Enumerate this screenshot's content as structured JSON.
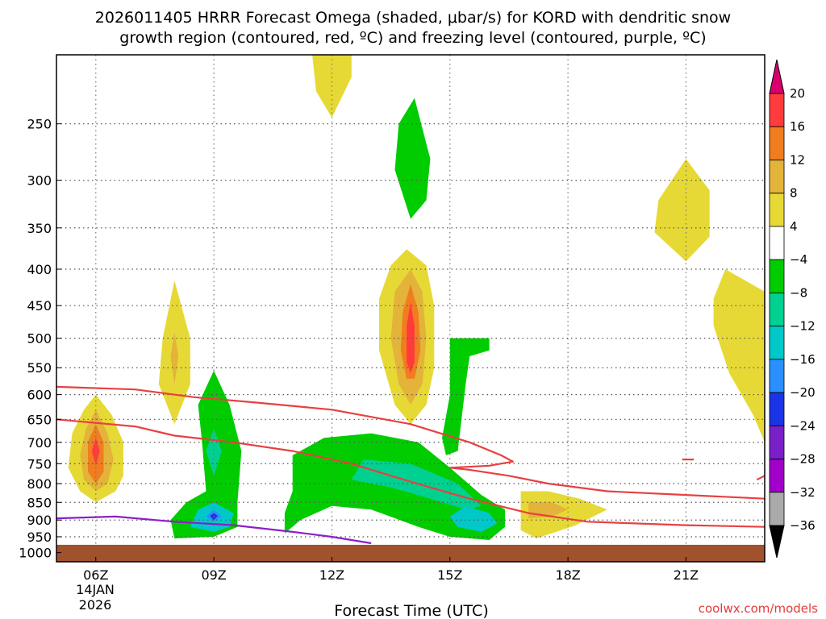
{
  "chart_data": {
    "type": "heatmap",
    "title_line1": "2026011405 HRRR Forecast Omega (shaded, μbar/s) for KORD with dendritic snow",
    "title_line2": "growth region (contoured, red, ºC) and freezing level (contoured, purple, ºC)",
    "xlabel": "Forecast Time (UTC)",
    "ylabel": "",
    "date_label_line1": "14JAN",
    "date_label_line2": "2026",
    "credit": "coolwx.com/models",
    "x_range_hours": [
      5,
      23
    ],
    "y_range_hpa": [
      200,
      1030
    ],
    "x_ticks": [
      {
        "hour": 6,
        "label": "06Z"
      },
      {
        "hour": 9,
        "label": "09Z"
      },
      {
        "hour": 12,
        "label": "12Z"
      },
      {
        "hour": 15,
        "label": "15Z"
      },
      {
        "hour": 18,
        "label": "18Z"
      },
      {
        "hour": 21,
        "label": "21Z"
      }
    ],
    "y_ticks": [
      {
        "p": 250,
        "label": "250"
      },
      {
        "p": 300,
        "label": "300"
      },
      {
        "p": 350,
        "label": "350"
      },
      {
        "p": 400,
        "label": "400"
      },
      {
        "p": 450,
        "label": "450"
      },
      {
        "p": 500,
        "label": "500"
      },
      {
        "p": 550,
        "label": "550"
      },
      {
        "p": 600,
        "label": "600"
      },
      {
        "p": 650,
        "label": "650"
      },
      {
        "p": 700,
        "label": "700"
      },
      {
        "p": 750,
        "label": "750"
      },
      {
        "p": 800,
        "label": "800"
      },
      {
        "p": 850,
        "label": "850"
      },
      {
        "p": 900,
        "label": "900"
      },
      {
        "p": 950,
        "label": "950"
      },
      {
        "p": 1000,
        "label": "1000"
      }
    ],
    "ground_pressure_hpa": 975,
    "colorbar": {
      "levels": [
        {
          "label": "20",
          "color": "#d9006c"
        },
        {
          "label": "16",
          "color": "#ff3b3b"
        },
        {
          "label": "12",
          "color": "#f07d20"
        },
        {
          "label": "8",
          "color": "#e3b33a"
        },
        {
          "label": "4",
          "color": "#e7d935"
        },
        {
          "label": "−4",
          "color": "#ffffff"
        },
        {
          "label": "−8",
          "color": "#00cc00"
        },
        {
          "label": "−12",
          "color": "#00d090"
        },
        {
          "label": "−16",
          "color": "#00c8c8"
        },
        {
          "label": "−20",
          "color": "#2a90ff"
        },
        {
          "label": "−24",
          "color": "#1b35e6"
        },
        {
          "label": "−28",
          "color": "#7a20c8"
        },
        {
          "label": "−32",
          "color": "#a000c8"
        },
        {
          "label": "−36",
          "color": "#aaaaaa"
        }
      ],
      "above_max_color": "#d9006c",
      "below_min_color": "#000000"
    },
    "shaded_features": [
      {
        "name": "upwards-lobe-06z-outer",
        "color": "#e7d935",
        "points": [
          [
            6.0,
            600
          ],
          [
            6.4,
            640
          ],
          [
            6.7,
            700
          ],
          [
            6.7,
            780
          ],
          [
            6.5,
            820
          ],
          [
            6.0,
            850
          ],
          [
            5.6,
            820
          ],
          [
            5.3,
            760
          ],
          [
            5.4,
            680
          ],
          [
            5.7,
            630
          ]
        ]
      },
      {
        "name": "upwards-lobe-06z-mid",
        "color": "#e3b33a",
        "points": [
          [
            6.0,
            630
          ],
          [
            6.3,
            680
          ],
          [
            6.45,
            740
          ],
          [
            6.3,
            800
          ],
          [
            6.0,
            820
          ],
          [
            5.7,
            790
          ],
          [
            5.6,
            730
          ],
          [
            5.75,
            670
          ]
        ]
      },
      {
        "name": "upwards-lobe-06z-inner",
        "color": "#f07d20",
        "points": [
          [
            6.0,
            660
          ],
          [
            6.2,
            700
          ],
          [
            6.2,
            770
          ],
          [
            6.0,
            800
          ],
          [
            5.8,
            770
          ],
          [
            5.8,
            700
          ]
        ]
      },
      {
        "name": "upwards-lobe-06z-core",
        "color": "#ff3b3b",
        "points": [
          [
            6.0,
            690
          ],
          [
            6.1,
            720
          ],
          [
            6.0,
            755
          ],
          [
            5.9,
            720
          ]
        ]
      },
      {
        "name": "upwards-lobe-08z",
        "color": "#e7d935",
        "points": [
          [
            8.0,
            415
          ],
          [
            8.4,
            500
          ],
          [
            8.4,
            580
          ],
          [
            8.0,
            660
          ],
          [
            7.6,
            580
          ],
          [
            7.7,
            500
          ]
        ]
      },
      {
        "name": "upwards-lobe-08z-inner",
        "color": "#e3b33a",
        "points": [
          [
            8.0,
            490
          ],
          [
            8.1,
            530
          ],
          [
            8.0,
            580
          ],
          [
            7.9,
            530
          ]
        ]
      },
      {
        "name": "upwards-lobe-12z-top",
        "color": "#e7d935",
        "points": [
          [
            11.5,
            200
          ],
          [
            12.5,
            200
          ],
          [
            12.5,
            215
          ],
          [
            12.0,
            245
          ],
          [
            11.6,
            225
          ]
        ]
      },
      {
        "name": "upwards-lobe-14z-outer",
        "color": "#e7d935",
        "points": [
          [
            13.9,
            375
          ],
          [
            14.4,
            395
          ],
          [
            14.6,
            450
          ],
          [
            14.6,
            550
          ],
          [
            14.4,
            620
          ],
          [
            14.0,
            660
          ],
          [
            13.6,
            620
          ],
          [
            13.2,
            520
          ],
          [
            13.2,
            440
          ],
          [
            13.5,
            395
          ]
        ]
      },
      {
        "name": "upwards-lobe-14z-mid",
        "color": "#e3b33a",
        "points": [
          [
            14.0,
            400
          ],
          [
            14.3,
            430
          ],
          [
            14.4,
            500
          ],
          [
            14.3,
            580
          ],
          [
            14.0,
            620
          ],
          [
            13.7,
            580
          ],
          [
            13.5,
            500
          ],
          [
            13.6,
            430
          ]
        ]
      },
      {
        "name": "upwards-lobe-14z-inner",
        "color": "#f07d20",
        "points": [
          [
            14.0,
            420
          ],
          [
            14.2,
            460
          ],
          [
            14.25,
            520
          ],
          [
            14.1,
            570
          ],
          [
            13.9,
            570
          ],
          [
            13.75,
            520
          ],
          [
            13.8,
            460
          ]
        ]
      },
      {
        "name": "upwards-lobe-14z-core",
        "color": "#ff3b3b",
        "points": [
          [
            14.0,
            445
          ],
          [
            14.1,
            480
          ],
          [
            14.1,
            540
          ],
          [
            14.0,
            560
          ],
          [
            13.9,
            540
          ],
          [
            13.9,
            480
          ]
        ]
      },
      {
        "name": "upwards-lobe-21z",
        "color": "#e7d935",
        "points": [
          [
            21.0,
            280
          ],
          [
            21.6,
            310
          ],
          [
            21.6,
            360
          ],
          [
            21.0,
            390
          ],
          [
            20.2,
            355
          ],
          [
            20.3,
            320
          ]
        ]
      },
      {
        "name": "upwards-lobe-23z",
        "color": "#e7d935",
        "points": [
          [
            23.0,
            430
          ],
          [
            23.0,
            700
          ],
          [
            22.7,
            640
          ],
          [
            22.1,
            560
          ],
          [
            21.7,
            480
          ],
          [
            21.7,
            440
          ],
          [
            22.0,
            400
          ]
        ]
      },
      {
        "name": "upwards-lobe-18z-outer",
        "color": "#e7d935",
        "points": [
          [
            16.8,
            820
          ],
          [
            17.5,
            820
          ],
          [
            18.3,
            840
          ],
          [
            19.0,
            870
          ],
          [
            18.2,
            915
          ],
          [
            17.2,
            955
          ],
          [
            16.8,
            930
          ]
        ]
      },
      {
        "name": "upwards-lobe-18z-inner",
        "color": "#e3b33a",
        "points": [
          [
            17.0,
            850
          ],
          [
            17.6,
            850
          ],
          [
            18.0,
            870
          ],
          [
            17.6,
            890
          ],
          [
            17.0,
            895
          ]
        ]
      },
      {
        "name": "downward-lobe-14z-top",
        "color": "#00cc00",
        "points": [
          [
            14.1,
            230
          ],
          [
            14.5,
            280
          ],
          [
            14.4,
            320
          ],
          [
            14.0,
            340
          ],
          [
            13.6,
            290
          ],
          [
            13.7,
            250
          ]
        ]
      },
      {
        "name": "downward-strip-15z",
        "color": "#00cc00",
        "points": [
          [
            15.0,
            485
          ],
          [
            15.0,
            500
          ],
          [
            16.0,
            500
          ],
          [
            16.0,
            520
          ],
          [
            15.5,
            530
          ],
          [
            15.4,
            580
          ],
          [
            15.2,
            720
          ],
          [
            14.9,
            730
          ],
          [
            14.8,
            690
          ],
          [
            15.0,
            600
          ]
        ]
      },
      {
        "name": "downward-region-09z",
        "color": "#00cc00",
        "points": [
          [
            9.0,
            555
          ],
          [
            9.4,
            620
          ],
          [
            9.7,
            720
          ],
          [
            9.6,
            850
          ],
          [
            9.6,
            920
          ],
          [
            9.0,
            950
          ],
          [
            8.0,
            955
          ],
          [
            7.9,
            900
          ],
          [
            8.3,
            850
          ],
          [
            8.8,
            820
          ],
          [
            8.7,
            700
          ],
          [
            8.6,
            620
          ]
        ]
      },
      {
        "name": "downward-region-09z-inner",
        "color": "#00d090",
        "points": [
          [
            9.0,
            670
          ],
          [
            9.2,
            720
          ],
          [
            9.0,
            780
          ],
          [
            8.8,
            720
          ]
        ]
      },
      {
        "name": "downward-region-09z-blue",
        "color": "#00c8c8",
        "points": [
          [
            9.0,
            850
          ],
          [
            9.5,
            880
          ],
          [
            9.4,
            920
          ],
          [
            9.0,
            935
          ],
          [
            8.4,
            920
          ],
          [
            8.6,
            870
          ]
        ]
      },
      {
        "name": "downward-region-09z-core",
        "color": "#2a90ff",
        "points": [
          [
            9.0,
            870
          ],
          [
            9.2,
            890
          ],
          [
            9.0,
            905
          ],
          [
            8.8,
            890
          ]
        ]
      },
      {
        "name": "downward-region-09z-peak",
        "color": "#1b35e6",
        "points": [
          [
            9.0,
            880
          ],
          [
            9.1,
            888
          ],
          [
            9.0,
            900
          ],
          [
            8.9,
            888
          ]
        ]
      },
      {
        "name": "downward-region-12z",
        "color": "#00cc00",
        "points": [
          [
            11.0,
            730
          ],
          [
            11.8,
            690
          ],
          [
            13.0,
            680
          ],
          [
            14.2,
            700
          ],
          [
            15.0,
            760
          ],
          [
            15.8,
            830
          ],
          [
            16.4,
            870
          ],
          [
            16.4,
            920
          ],
          [
            16.0,
            960
          ],
          [
            15.0,
            950
          ],
          [
            14.2,
            920
          ],
          [
            13.0,
            870
          ],
          [
            12.0,
            860
          ],
          [
            11.2,
            900
          ],
          [
            10.8,
            940
          ],
          [
            10.8,
            880
          ],
          [
            11.0,
            820
          ]
        ]
      },
      {
        "name": "downward-region-12z-inner",
        "color": "#00d090",
        "points": [
          [
            12.8,
            740
          ],
          [
            14.0,
            750
          ],
          [
            15.2,
            800
          ],
          [
            15.8,
            860
          ],
          [
            15.4,
            870
          ],
          [
            14.5,
            840
          ],
          [
            13.5,
            810
          ],
          [
            12.5,
            790
          ]
        ]
      },
      {
        "name": "downward-region-15z-core",
        "color": "#00c8c8",
        "points": [
          [
            15.4,
            860
          ],
          [
            16.0,
            880
          ],
          [
            16.2,
            910
          ],
          [
            15.8,
            935
          ],
          [
            15.2,
            920
          ],
          [
            15.0,
            890
          ]
        ]
      }
    ],
    "contours": [
      {
        "name": "dendritic-snow-upper",
        "color": "#e84040",
        "points": [
          [
            5,
            585
          ],
          [
            7,
            590
          ],
          [
            8.5,
            605
          ],
          [
            10,
            615
          ],
          [
            12,
            630
          ],
          [
            14,
            660
          ],
          [
            15.5,
            700
          ],
          [
            16.3,
            730
          ],
          [
            16.6,
            745
          ],
          [
            16,
            755
          ],
          [
            15,
            760
          ],
          [
            15.5,
            765
          ],
          [
            16.5,
            780
          ],
          [
            17.5,
            800
          ],
          [
            19,
            820
          ],
          [
            21,
            830
          ],
          [
            23,
            840
          ]
        ]
      },
      {
        "name": "dendritic-snow-lower",
        "color": "#e84040",
        "points": [
          [
            5,
            650
          ],
          [
            7,
            665
          ],
          [
            8,
            685
          ],
          [
            9.5,
            700
          ],
          [
            11,
            720
          ],
          [
            12.5,
            750
          ],
          [
            13.5,
            780
          ],
          [
            14.5,
            810
          ],
          [
            15.5,
            840
          ],
          [
            17,
            880
          ],
          [
            18.5,
            905
          ],
          [
            21,
            915
          ],
          [
            23,
            920
          ]
        ]
      },
      {
        "name": "dendritic-snow-fragment-22z",
        "color": "#e84040",
        "points": [
          [
            22.8,
            790
          ],
          [
            23,
            780
          ]
        ]
      },
      {
        "name": "dendritic-snow-fragment-21z",
        "color": "#e84040",
        "points": [
          [
            20.9,
            740
          ],
          [
            21.2,
            740
          ]
        ]
      },
      {
        "name": "freezing-level",
        "color": "#8a20c8",
        "points": [
          [
            5,
            895
          ],
          [
            6.5,
            890
          ],
          [
            8,
            905
          ],
          [
            9.5,
            915
          ],
          [
            11,
            935
          ],
          [
            12,
            950
          ],
          [
            13,
            970
          ]
        ]
      }
    ]
  }
}
